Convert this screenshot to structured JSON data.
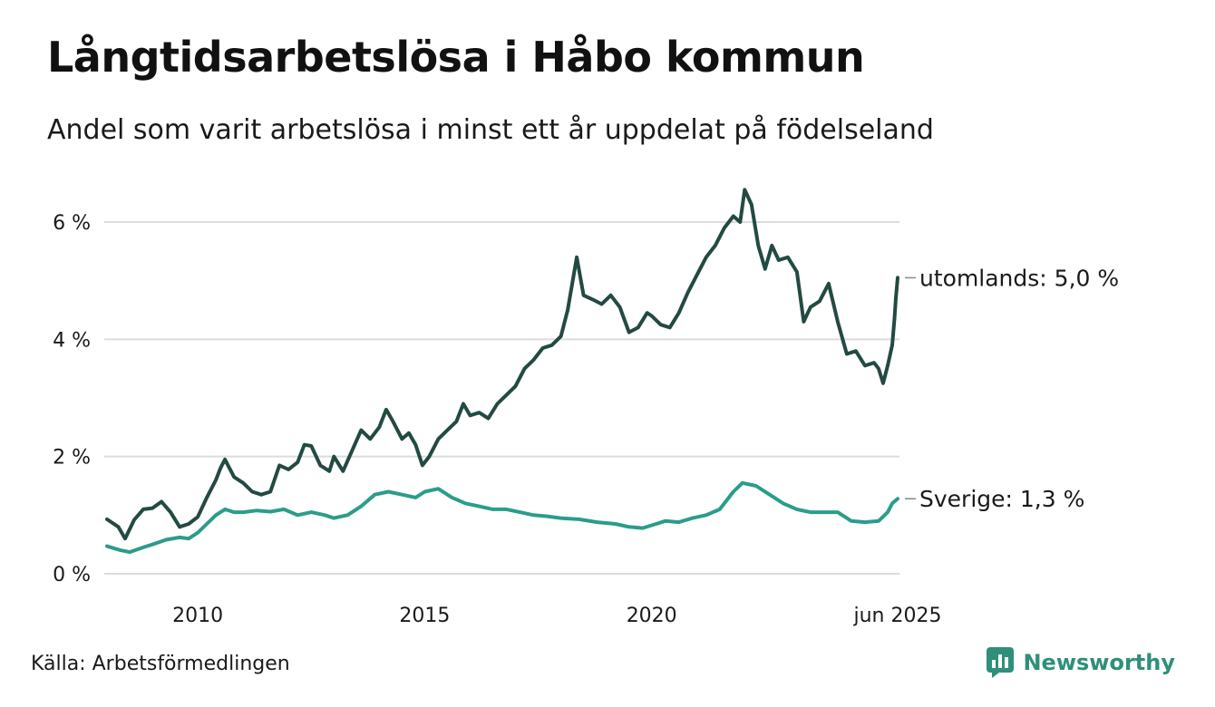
{
  "header": {
    "title": "Långtidsarbetslösa i Håbo kommun",
    "subtitle": "Andel som varit arbetslösa i minst ett år uppdelat på födelseland"
  },
  "footer": {
    "source": "Källa: Arbetsförmedlingen",
    "brand": "Newsworthy",
    "brand_color": "#2f8f7a",
    "brand_icon": "bar-chart-chat-bubble-icon"
  },
  "chart_data": {
    "type": "line",
    "title": "Långtidsarbetslösa i Håbo kommun",
    "subtitle": "Andel som varit arbetslösa i minst ett år uppdelat på födelseland",
    "xlabel": "",
    "ylabel": "",
    "xlim": [
      2008.0,
      2025.42
    ],
    "ylim": [
      0,
      6.7
    ],
    "y_ticks": [
      0,
      2,
      4,
      6
    ],
    "y_tick_labels": [
      "0 %",
      "2 %",
      "4 %",
      "6 %"
    ],
    "x_ticks": [
      2010,
      2015,
      2020,
      2025.42
    ],
    "x_tick_labels": [
      "2010",
      "2015",
      "2020",
      "jun 2025"
    ],
    "grid": "horizontal",
    "legend": "direct labels at line ends",
    "series": [
      {
        "name": "utomlands",
        "end_label": "utomlands: 5,0 %",
        "color": "#234a42",
        "points": [
          [
            2008.0,
            0.93
          ],
          [
            2008.25,
            0.8
          ],
          [
            2008.4,
            0.6
          ],
          [
            2008.6,
            0.92
          ],
          [
            2008.8,
            1.1
          ],
          [
            2009.0,
            1.12
          ],
          [
            2009.2,
            1.23
          ],
          [
            2009.4,
            1.05
          ],
          [
            2009.6,
            0.8
          ],
          [
            2009.8,
            0.85
          ],
          [
            2010.0,
            0.97
          ],
          [
            2010.2,
            1.3
          ],
          [
            2010.4,
            1.6
          ],
          [
            2010.5,
            1.8
          ],
          [
            2010.6,
            1.95
          ],
          [
            2010.8,
            1.65
          ],
          [
            2011.0,
            1.55
          ],
          [
            2011.2,
            1.4
          ],
          [
            2011.4,
            1.35
          ],
          [
            2011.6,
            1.4
          ],
          [
            2011.8,
            1.85
          ],
          [
            2012.0,
            1.78
          ],
          [
            2012.2,
            1.9
          ],
          [
            2012.35,
            2.2
          ],
          [
            2012.5,
            2.18
          ],
          [
            2012.7,
            1.85
          ],
          [
            2012.9,
            1.75
          ],
          [
            2013.0,
            2.0
          ],
          [
            2013.2,
            1.75
          ],
          [
            2013.4,
            2.1
          ],
          [
            2013.6,
            2.45
          ],
          [
            2013.8,
            2.3
          ],
          [
            2014.0,
            2.5
          ],
          [
            2014.15,
            2.8
          ],
          [
            2014.3,
            2.6
          ],
          [
            2014.5,
            2.3
          ],
          [
            2014.65,
            2.4
          ],
          [
            2014.8,
            2.2
          ],
          [
            2014.95,
            1.85
          ],
          [
            2015.1,
            2.0
          ],
          [
            2015.3,
            2.3
          ],
          [
            2015.5,
            2.45
          ],
          [
            2015.7,
            2.6
          ],
          [
            2015.85,
            2.9
          ],
          [
            2016.0,
            2.7
          ],
          [
            2016.2,
            2.75
          ],
          [
            2016.4,
            2.65
          ],
          [
            2016.6,
            2.9
          ],
          [
            2016.8,
            3.05
          ],
          [
            2017.0,
            3.2
          ],
          [
            2017.2,
            3.5
          ],
          [
            2017.4,
            3.65
          ],
          [
            2017.6,
            3.85
          ],
          [
            2017.8,
            3.9
          ],
          [
            2018.0,
            4.05
          ],
          [
            2018.15,
            4.5
          ],
          [
            2018.35,
            5.4
          ],
          [
            2018.5,
            4.75
          ],
          [
            2018.7,
            4.68
          ],
          [
            2018.9,
            4.6
          ],
          [
            2019.1,
            4.75
          ],
          [
            2019.3,
            4.55
          ],
          [
            2019.5,
            4.12
          ],
          [
            2019.7,
            4.2
          ],
          [
            2019.9,
            4.45
          ],
          [
            2020.0,
            4.4
          ],
          [
            2020.2,
            4.25
          ],
          [
            2020.4,
            4.2
          ],
          [
            2020.6,
            4.45
          ],
          [
            2020.8,
            4.8
          ],
          [
            2021.0,
            5.1
          ],
          [
            2021.2,
            5.4
          ],
          [
            2021.4,
            5.6
          ],
          [
            2021.6,
            5.9
          ],
          [
            2021.8,
            6.1
          ],
          [
            2021.95,
            6.0
          ],
          [
            2022.05,
            6.55
          ],
          [
            2022.2,
            6.3
          ],
          [
            2022.35,
            5.6
          ],
          [
            2022.5,
            5.2
          ],
          [
            2022.65,
            5.6
          ],
          [
            2022.8,
            5.35
          ],
          [
            2023.0,
            5.4
          ],
          [
            2023.2,
            5.15
          ],
          [
            2023.35,
            4.3
          ],
          [
            2023.5,
            4.55
          ],
          [
            2023.7,
            4.65
          ],
          [
            2023.9,
            4.95
          ],
          [
            2024.1,
            4.3
          ],
          [
            2024.3,
            3.75
          ],
          [
            2024.5,
            3.8
          ],
          [
            2024.7,
            3.55
          ],
          [
            2024.9,
            3.6
          ],
          [
            2025.0,
            3.5
          ],
          [
            2025.1,
            3.25
          ],
          [
            2025.2,
            3.55
          ],
          [
            2025.3,
            3.9
          ],
          [
            2025.35,
            4.35
          ],
          [
            2025.38,
            4.7
          ],
          [
            2025.42,
            5.05
          ]
        ]
      },
      {
        "name": "Sverige",
        "end_label": "Sverige: 1,3 %",
        "color": "#2a9d8a",
        "points": [
          [
            2008.0,
            0.47
          ],
          [
            2008.3,
            0.4
          ],
          [
            2008.5,
            0.37
          ],
          [
            2008.8,
            0.45
          ],
          [
            2009.0,
            0.5
          ],
          [
            2009.3,
            0.58
          ],
          [
            2009.6,
            0.62
          ],
          [
            2009.8,
            0.6
          ],
          [
            2010.0,
            0.7
          ],
          [
            2010.2,
            0.85
          ],
          [
            2010.4,
            1.0
          ],
          [
            2010.6,
            1.1
          ],
          [
            2010.8,
            1.05
          ],
          [
            2011.0,
            1.05
          ],
          [
            2011.3,
            1.08
          ],
          [
            2011.6,
            1.06
          ],
          [
            2011.9,
            1.1
          ],
          [
            2012.2,
            1.0
          ],
          [
            2012.5,
            1.05
          ],
          [
            2012.8,
            1.0
          ],
          [
            2013.0,
            0.95
          ],
          [
            2013.3,
            1.0
          ],
          [
            2013.6,
            1.15
          ],
          [
            2013.9,
            1.35
          ],
          [
            2014.2,
            1.4
          ],
          [
            2014.5,
            1.35
          ],
          [
            2014.8,
            1.3
          ],
          [
            2015.0,
            1.4
          ],
          [
            2015.3,
            1.45
          ],
          [
            2015.6,
            1.3
          ],
          [
            2015.9,
            1.2
          ],
          [
            2016.2,
            1.15
          ],
          [
            2016.5,
            1.1
          ],
          [
            2016.8,
            1.1
          ],
          [
            2017.1,
            1.05
          ],
          [
            2017.4,
            1.0
          ],
          [
            2017.7,
            0.98
          ],
          [
            2018.0,
            0.95
          ],
          [
            2018.4,
            0.93
          ],
          [
            2018.8,
            0.88
          ],
          [
            2019.2,
            0.85
          ],
          [
            2019.5,
            0.8
          ],
          [
            2019.8,
            0.78
          ],
          [
            2020.1,
            0.85
          ],
          [
            2020.3,
            0.9
          ],
          [
            2020.6,
            0.88
          ],
          [
            2020.9,
            0.95
          ],
          [
            2021.2,
            1.0
          ],
          [
            2021.5,
            1.1
          ],
          [
            2021.8,
            1.4
          ],
          [
            2022.0,
            1.55
          ],
          [
            2022.3,
            1.5
          ],
          [
            2022.6,
            1.35
          ],
          [
            2022.9,
            1.2
          ],
          [
            2023.2,
            1.1
          ],
          [
            2023.5,
            1.05
          ],
          [
            2023.8,
            1.05
          ],
          [
            2024.1,
            1.05
          ],
          [
            2024.4,
            0.9
          ],
          [
            2024.7,
            0.88
          ],
          [
            2025.0,
            0.9
          ],
          [
            2025.2,
            1.05
          ],
          [
            2025.3,
            1.2
          ],
          [
            2025.42,
            1.28
          ]
        ]
      }
    ]
  }
}
